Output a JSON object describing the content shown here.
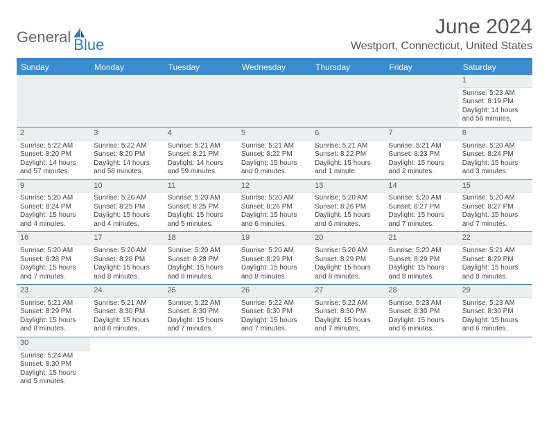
{
  "brand": {
    "part1": "General",
    "part2": "Blue"
  },
  "title": {
    "month": "June 2024",
    "location": "Westport, Connecticut, United States"
  },
  "colors": {
    "header_bg": "#3b8bd0",
    "border": "#2f7bbf",
    "daynum_bg": "#eceff0",
    "text": "#444444",
    "title_text": "#555555"
  },
  "day_names": [
    "Sunday",
    "Monday",
    "Tuesday",
    "Wednesday",
    "Thursday",
    "Friday",
    "Saturday"
  ],
  "weeks": [
    [
      null,
      null,
      null,
      null,
      null,
      null,
      {
        "n": "1",
        "sr": "Sunrise: 5:23 AM",
        "ss": "Sunset: 8:19 PM",
        "dl": "Daylight: 14 hours and 56 minutes."
      }
    ],
    [
      {
        "n": "2",
        "sr": "Sunrise: 5:22 AM",
        "ss": "Sunset: 8:20 PM",
        "dl": "Daylight: 14 hours and 57 minutes."
      },
      {
        "n": "3",
        "sr": "Sunrise: 5:22 AM",
        "ss": "Sunset: 8:20 PM",
        "dl": "Daylight: 14 hours and 58 minutes."
      },
      {
        "n": "4",
        "sr": "Sunrise: 5:21 AM",
        "ss": "Sunset: 8:21 PM",
        "dl": "Daylight: 14 hours and 59 minutes."
      },
      {
        "n": "5",
        "sr": "Sunrise: 5:21 AM",
        "ss": "Sunset: 8:22 PM",
        "dl": "Daylight: 15 hours and 0 minutes."
      },
      {
        "n": "6",
        "sr": "Sunrise: 5:21 AM",
        "ss": "Sunset: 8:22 PM",
        "dl": "Daylight: 15 hours and 1 minute."
      },
      {
        "n": "7",
        "sr": "Sunrise: 5:21 AM",
        "ss": "Sunset: 8:23 PM",
        "dl": "Daylight: 15 hours and 2 minutes."
      },
      {
        "n": "8",
        "sr": "Sunrise: 5:20 AM",
        "ss": "Sunset: 8:24 PM",
        "dl": "Daylight: 15 hours and 3 minutes."
      }
    ],
    [
      {
        "n": "9",
        "sr": "Sunrise: 5:20 AM",
        "ss": "Sunset: 8:24 PM",
        "dl": "Daylight: 15 hours and 4 minutes."
      },
      {
        "n": "10",
        "sr": "Sunrise: 5:20 AM",
        "ss": "Sunset: 8:25 PM",
        "dl": "Daylight: 15 hours and 4 minutes."
      },
      {
        "n": "11",
        "sr": "Sunrise: 5:20 AM",
        "ss": "Sunset: 8:25 PM",
        "dl": "Daylight: 15 hours and 5 minutes."
      },
      {
        "n": "12",
        "sr": "Sunrise: 5:20 AM",
        "ss": "Sunset: 8:26 PM",
        "dl": "Daylight: 15 hours and 6 minutes."
      },
      {
        "n": "13",
        "sr": "Sunrise: 5:20 AM",
        "ss": "Sunset: 8:26 PM",
        "dl": "Daylight: 15 hours and 6 minutes."
      },
      {
        "n": "14",
        "sr": "Sunrise: 5:20 AM",
        "ss": "Sunset: 8:27 PM",
        "dl": "Daylight: 15 hours and 7 minutes."
      },
      {
        "n": "15",
        "sr": "Sunrise: 5:20 AM",
        "ss": "Sunset: 8:27 PM",
        "dl": "Daylight: 15 hours and 7 minutes."
      }
    ],
    [
      {
        "n": "16",
        "sr": "Sunrise: 5:20 AM",
        "ss": "Sunset: 8:28 PM",
        "dl": "Daylight: 15 hours and 7 minutes."
      },
      {
        "n": "17",
        "sr": "Sunrise: 5:20 AM",
        "ss": "Sunset: 8:28 PM",
        "dl": "Daylight: 15 hours and 8 minutes."
      },
      {
        "n": "18",
        "sr": "Sunrise: 5:20 AM",
        "ss": "Sunset: 8:28 PM",
        "dl": "Daylight: 15 hours and 8 minutes."
      },
      {
        "n": "19",
        "sr": "Sunrise: 5:20 AM",
        "ss": "Sunset: 8:29 PM",
        "dl": "Daylight: 15 hours and 8 minutes."
      },
      {
        "n": "20",
        "sr": "Sunrise: 5:20 AM",
        "ss": "Sunset: 8:29 PM",
        "dl": "Daylight: 15 hours and 8 minutes."
      },
      {
        "n": "21",
        "sr": "Sunrise: 5:20 AM",
        "ss": "Sunset: 8:29 PM",
        "dl": "Daylight: 15 hours and 8 minutes."
      },
      {
        "n": "22",
        "sr": "Sunrise: 5:21 AM",
        "ss": "Sunset: 8:29 PM",
        "dl": "Daylight: 15 hours and 8 minutes."
      }
    ],
    [
      {
        "n": "23",
        "sr": "Sunrise: 5:21 AM",
        "ss": "Sunset: 8:29 PM",
        "dl": "Daylight: 15 hours and 8 minutes."
      },
      {
        "n": "24",
        "sr": "Sunrise: 5:21 AM",
        "ss": "Sunset: 8:30 PM",
        "dl": "Daylight: 15 hours and 8 minutes."
      },
      {
        "n": "25",
        "sr": "Sunrise: 5:22 AM",
        "ss": "Sunset: 8:30 PM",
        "dl": "Daylight: 15 hours and 7 minutes."
      },
      {
        "n": "26",
        "sr": "Sunrise: 5:22 AM",
        "ss": "Sunset: 8:30 PM",
        "dl": "Daylight: 15 hours and 7 minutes."
      },
      {
        "n": "27",
        "sr": "Sunrise: 5:22 AM",
        "ss": "Sunset: 8:30 PM",
        "dl": "Daylight: 15 hours and 7 minutes."
      },
      {
        "n": "28",
        "sr": "Sunrise: 5:23 AM",
        "ss": "Sunset: 8:30 PM",
        "dl": "Daylight: 15 hours and 6 minutes."
      },
      {
        "n": "29",
        "sr": "Sunrise: 5:23 AM",
        "ss": "Sunset: 8:30 PM",
        "dl": "Daylight: 15 hours and 6 minutes."
      }
    ],
    [
      {
        "n": "30",
        "sr": "Sunrise: 5:24 AM",
        "ss": "Sunset: 8:30 PM",
        "dl": "Daylight: 15 hours and 5 minutes."
      },
      null,
      null,
      null,
      null,
      null,
      null
    ]
  ]
}
